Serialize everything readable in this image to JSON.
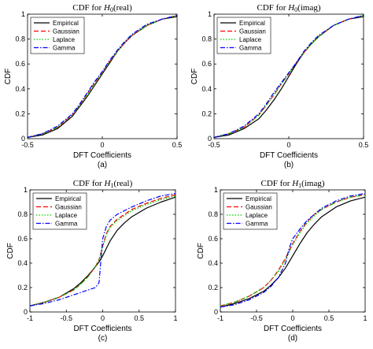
{
  "chart_data": [
    {
      "type": "line",
      "caption": "(a)",
      "title": {
        "prefix": "CDF for ",
        "var": "H",
        "sub": "0",
        "suffix": "(real)"
      },
      "xlabel": "DFT Coefficients",
      "ylabel": "CDF",
      "xlim": [
        -0.5,
        0.5
      ],
      "ylim": [
        0,
        1
      ],
      "xticks": [
        "-0.5",
        "0",
        "0.5"
      ],
      "yticks": [
        "0",
        "0.2",
        "0.4",
        "0.6",
        "0.8",
        "1"
      ],
      "legend_position": "top-left",
      "grid": false,
      "series": [
        {
          "name": "Empirical",
          "color": "#000000",
          "dash": "solid",
          "x": [
            -0.5,
            -0.4,
            -0.3,
            -0.2,
            -0.15,
            -0.1,
            -0.05,
            0,
            0.05,
            0.1,
            0.15,
            0.2,
            0.3,
            0.4,
            0.5
          ],
          "y": [
            0.01,
            0.03,
            0.08,
            0.18,
            0.26,
            0.34,
            0.43,
            0.52,
            0.61,
            0.7,
            0.77,
            0.83,
            0.91,
            0.96,
            0.98
          ]
        },
        {
          "name": "Gaussian",
          "color": "#ff0000",
          "dash": "dashed",
          "x": [
            -0.5,
            -0.4,
            -0.3,
            -0.2,
            -0.15,
            -0.1,
            -0.05,
            0,
            0.05,
            0.1,
            0.15,
            0.2,
            0.3,
            0.4,
            0.5
          ],
          "y": [
            0.01,
            0.04,
            0.09,
            0.19,
            0.27,
            0.36,
            0.45,
            0.53,
            0.62,
            0.7,
            0.77,
            0.83,
            0.91,
            0.96,
            0.99
          ]
        },
        {
          "name": "Laplace",
          "color": "#00cc00",
          "dash": "dotted",
          "x": [
            -0.5,
            -0.4,
            -0.3,
            -0.2,
            -0.15,
            -0.1,
            -0.05,
            0,
            0.05,
            0.1,
            0.15,
            0.2,
            0.3,
            0.4,
            0.5
          ],
          "y": [
            0.01,
            0.04,
            0.09,
            0.19,
            0.27,
            0.35,
            0.44,
            0.53,
            0.62,
            0.7,
            0.77,
            0.83,
            0.91,
            0.96,
            0.99
          ]
        },
        {
          "name": "Gamma",
          "color": "#0000ff",
          "dash": "dashdot",
          "x": [
            -0.5,
            -0.4,
            -0.3,
            -0.2,
            -0.15,
            -0.1,
            -0.05,
            0,
            0.05,
            0.1,
            0.15,
            0.2,
            0.3,
            0.4,
            0.5
          ],
          "y": [
            0.01,
            0.04,
            0.1,
            0.2,
            0.28,
            0.37,
            0.46,
            0.54,
            0.63,
            0.71,
            0.78,
            0.84,
            0.92,
            0.96,
            0.99
          ]
        }
      ]
    },
    {
      "type": "line",
      "caption": "(b)",
      "title": {
        "prefix": "CDF for ",
        "var": "H",
        "sub": "0",
        "suffix": "(imag)"
      },
      "xlabel": "DFT Coefficients",
      "ylabel": "CDF",
      "xlim": [
        -0.5,
        0.5
      ],
      "ylim": [
        0,
        1
      ],
      "xticks": [
        "-0.5",
        "0",
        "0.5"
      ],
      "yticks": [
        "0",
        "0.2",
        "0.4",
        "0.6",
        "0.8",
        "1"
      ],
      "legend_position": "top-left",
      "grid": false,
      "series": [
        {
          "name": "Empirical",
          "color": "#000000",
          "dash": "solid",
          "x": [
            -0.5,
            -0.4,
            -0.3,
            -0.2,
            -0.15,
            -0.1,
            -0.05,
            0,
            0.05,
            0.1,
            0.15,
            0.2,
            0.3,
            0.4,
            0.5
          ],
          "y": [
            0.01,
            0.03,
            0.08,
            0.16,
            0.23,
            0.31,
            0.4,
            0.5,
            0.6,
            0.69,
            0.76,
            0.82,
            0.91,
            0.96,
            0.98
          ]
        },
        {
          "name": "Gaussian",
          "color": "#ff0000",
          "dash": "dashed",
          "x": [
            -0.5,
            -0.4,
            -0.3,
            -0.2,
            -0.15,
            -0.1,
            -0.05,
            0,
            0.05,
            0.1,
            0.15,
            0.2,
            0.3,
            0.4,
            0.5
          ],
          "y": [
            0.01,
            0.04,
            0.09,
            0.19,
            0.27,
            0.35,
            0.44,
            0.52,
            0.61,
            0.69,
            0.76,
            0.82,
            0.91,
            0.96,
            0.99
          ]
        },
        {
          "name": "Laplace",
          "color": "#00cc00",
          "dash": "dotted",
          "x": [
            -0.5,
            -0.4,
            -0.3,
            -0.2,
            -0.15,
            -0.1,
            -0.05,
            0,
            0.05,
            0.1,
            0.15,
            0.2,
            0.3,
            0.4,
            0.5
          ],
          "y": [
            0.01,
            0.04,
            0.09,
            0.19,
            0.27,
            0.35,
            0.44,
            0.52,
            0.61,
            0.69,
            0.76,
            0.82,
            0.91,
            0.96,
            0.99
          ]
        },
        {
          "name": "Gamma",
          "color": "#0000ff",
          "dash": "dashdot",
          "x": [
            -0.5,
            -0.4,
            -0.3,
            -0.2,
            -0.15,
            -0.1,
            -0.05,
            0,
            0.05,
            0.1,
            0.15,
            0.2,
            0.3,
            0.4,
            0.5
          ],
          "y": [
            0.01,
            0.04,
            0.1,
            0.2,
            0.28,
            0.37,
            0.45,
            0.53,
            0.61,
            0.7,
            0.77,
            0.83,
            0.91,
            0.96,
            0.99
          ]
        }
      ]
    },
    {
      "type": "line",
      "caption": "(c)",
      "title": {
        "prefix": "CDF for ",
        "var": "H",
        "sub": "1",
        "suffix": "(real)"
      },
      "xlabel": "DFT Coefficients",
      "ylabel": "CDF",
      "xlim": [
        -1,
        1
      ],
      "ylim": [
        0,
        1
      ],
      "xticks": [
        "-1",
        "-0.5",
        "0",
        "0.5",
        "1"
      ],
      "yticks": [
        "0",
        "0.2",
        "0.4",
        "0.6",
        "0.8",
        "1"
      ],
      "legend_position": "top-left",
      "grid": false,
      "series": [
        {
          "name": "Empirical",
          "color": "#000000",
          "dash": "solid",
          "x": [
            -1,
            -0.8,
            -0.6,
            -0.4,
            -0.3,
            -0.2,
            -0.1,
            -0.05,
            0,
            0.05,
            0.1,
            0.2,
            0.3,
            0.4,
            0.6,
            0.8,
            1
          ],
          "y": [
            0.05,
            0.08,
            0.12,
            0.19,
            0.24,
            0.3,
            0.37,
            0.41,
            0.46,
            0.52,
            0.58,
            0.67,
            0.73,
            0.78,
            0.85,
            0.9,
            0.94
          ]
        },
        {
          "name": "Gaussian",
          "color": "#ff0000",
          "dash": "dashed",
          "x": [
            -1,
            -0.8,
            -0.6,
            -0.4,
            -0.3,
            -0.2,
            -0.1,
            -0.05,
            0,
            0.05,
            0.1,
            0.2,
            0.3,
            0.4,
            0.6,
            0.8,
            1
          ],
          "y": [
            0.05,
            0.08,
            0.12,
            0.18,
            0.23,
            0.29,
            0.37,
            0.43,
            0.54,
            0.64,
            0.7,
            0.76,
            0.8,
            0.84,
            0.89,
            0.93,
            0.96
          ]
        },
        {
          "name": "Laplace",
          "color": "#00cc00",
          "dash": "dotted",
          "x": [
            -1,
            -0.8,
            -0.6,
            -0.4,
            -0.3,
            -0.2,
            -0.1,
            -0.05,
            0,
            0.05,
            0.1,
            0.2,
            0.3,
            0.4,
            0.6,
            0.8,
            1
          ],
          "y": [
            0.05,
            0.08,
            0.12,
            0.18,
            0.23,
            0.29,
            0.37,
            0.43,
            0.53,
            0.63,
            0.69,
            0.75,
            0.79,
            0.83,
            0.88,
            0.92,
            0.95
          ]
        },
        {
          "name": "Gamma",
          "color": "#0000ff",
          "dash": "dashdot",
          "x": [
            -1,
            -0.8,
            -0.6,
            -0.4,
            -0.3,
            -0.2,
            -0.1,
            -0.05,
            0,
            0.05,
            0.1,
            0.2,
            0.3,
            0.4,
            0.6,
            0.8,
            1
          ],
          "y": [
            0.05,
            0.07,
            0.1,
            0.14,
            0.16,
            0.18,
            0.2,
            0.24,
            0.6,
            0.7,
            0.75,
            0.8,
            0.83,
            0.86,
            0.91,
            0.95,
            0.97
          ]
        }
      ]
    },
    {
      "type": "line",
      "caption": "(d)",
      "title": {
        "prefix": "CDF for ",
        "var": "H",
        "sub": "1",
        "suffix": "(imag)"
      },
      "xlabel": "DFT Coefficients",
      "ylabel": "CDF",
      "xlim": [
        -1,
        1
      ],
      "ylim": [
        0,
        1
      ],
      "xticks": [
        "-1",
        "-0.5",
        "0",
        "0.5",
        "1"
      ],
      "yticks": [
        "0",
        "0.2",
        "0.4",
        "0.6",
        "0.8",
        "1"
      ],
      "legend_position": "top-left",
      "grid": false,
      "series": [
        {
          "name": "Empirical",
          "color": "#000000",
          "dash": "solid",
          "x": [
            -1,
            -0.8,
            -0.6,
            -0.4,
            -0.3,
            -0.2,
            -0.1,
            0,
            0.1,
            0.2,
            0.3,
            0.4,
            0.6,
            0.8,
            1
          ],
          "y": [
            0.04,
            0.07,
            0.11,
            0.17,
            0.22,
            0.28,
            0.36,
            0.46,
            0.56,
            0.65,
            0.72,
            0.78,
            0.86,
            0.91,
            0.94
          ]
        },
        {
          "name": "Gaussian",
          "color": "#ff0000",
          "dash": "dashed",
          "x": [
            -1,
            -0.8,
            -0.6,
            -0.4,
            -0.3,
            -0.2,
            -0.1,
            0,
            0.1,
            0.2,
            0.3,
            0.4,
            0.6,
            0.8,
            1
          ],
          "y": [
            0.05,
            0.08,
            0.13,
            0.2,
            0.26,
            0.34,
            0.44,
            0.56,
            0.66,
            0.74,
            0.8,
            0.84,
            0.9,
            0.94,
            0.96
          ]
        },
        {
          "name": "Laplace",
          "color": "#00cc00",
          "dash": "dotted",
          "x": [
            -1,
            -0.8,
            -0.6,
            -0.4,
            -0.3,
            -0.2,
            -0.1,
            0,
            0.1,
            0.2,
            0.3,
            0.4,
            0.6,
            0.8,
            1
          ],
          "y": [
            0.05,
            0.08,
            0.13,
            0.2,
            0.26,
            0.33,
            0.43,
            0.55,
            0.65,
            0.73,
            0.79,
            0.84,
            0.9,
            0.94,
            0.96
          ]
        },
        {
          "name": "Gamma",
          "color": "#0000ff",
          "dash": "dashdot",
          "x": [
            -1,
            -0.8,
            -0.6,
            -0.4,
            -0.3,
            -0.2,
            -0.1,
            -0.05,
            0,
            0.1,
            0.2,
            0.3,
            0.4,
            0.6,
            0.8,
            1
          ],
          "y": [
            0.04,
            0.06,
            0.1,
            0.16,
            0.21,
            0.28,
            0.4,
            0.52,
            0.6,
            0.68,
            0.75,
            0.8,
            0.85,
            0.91,
            0.95,
            0.97
          ]
        }
      ]
    }
  ]
}
